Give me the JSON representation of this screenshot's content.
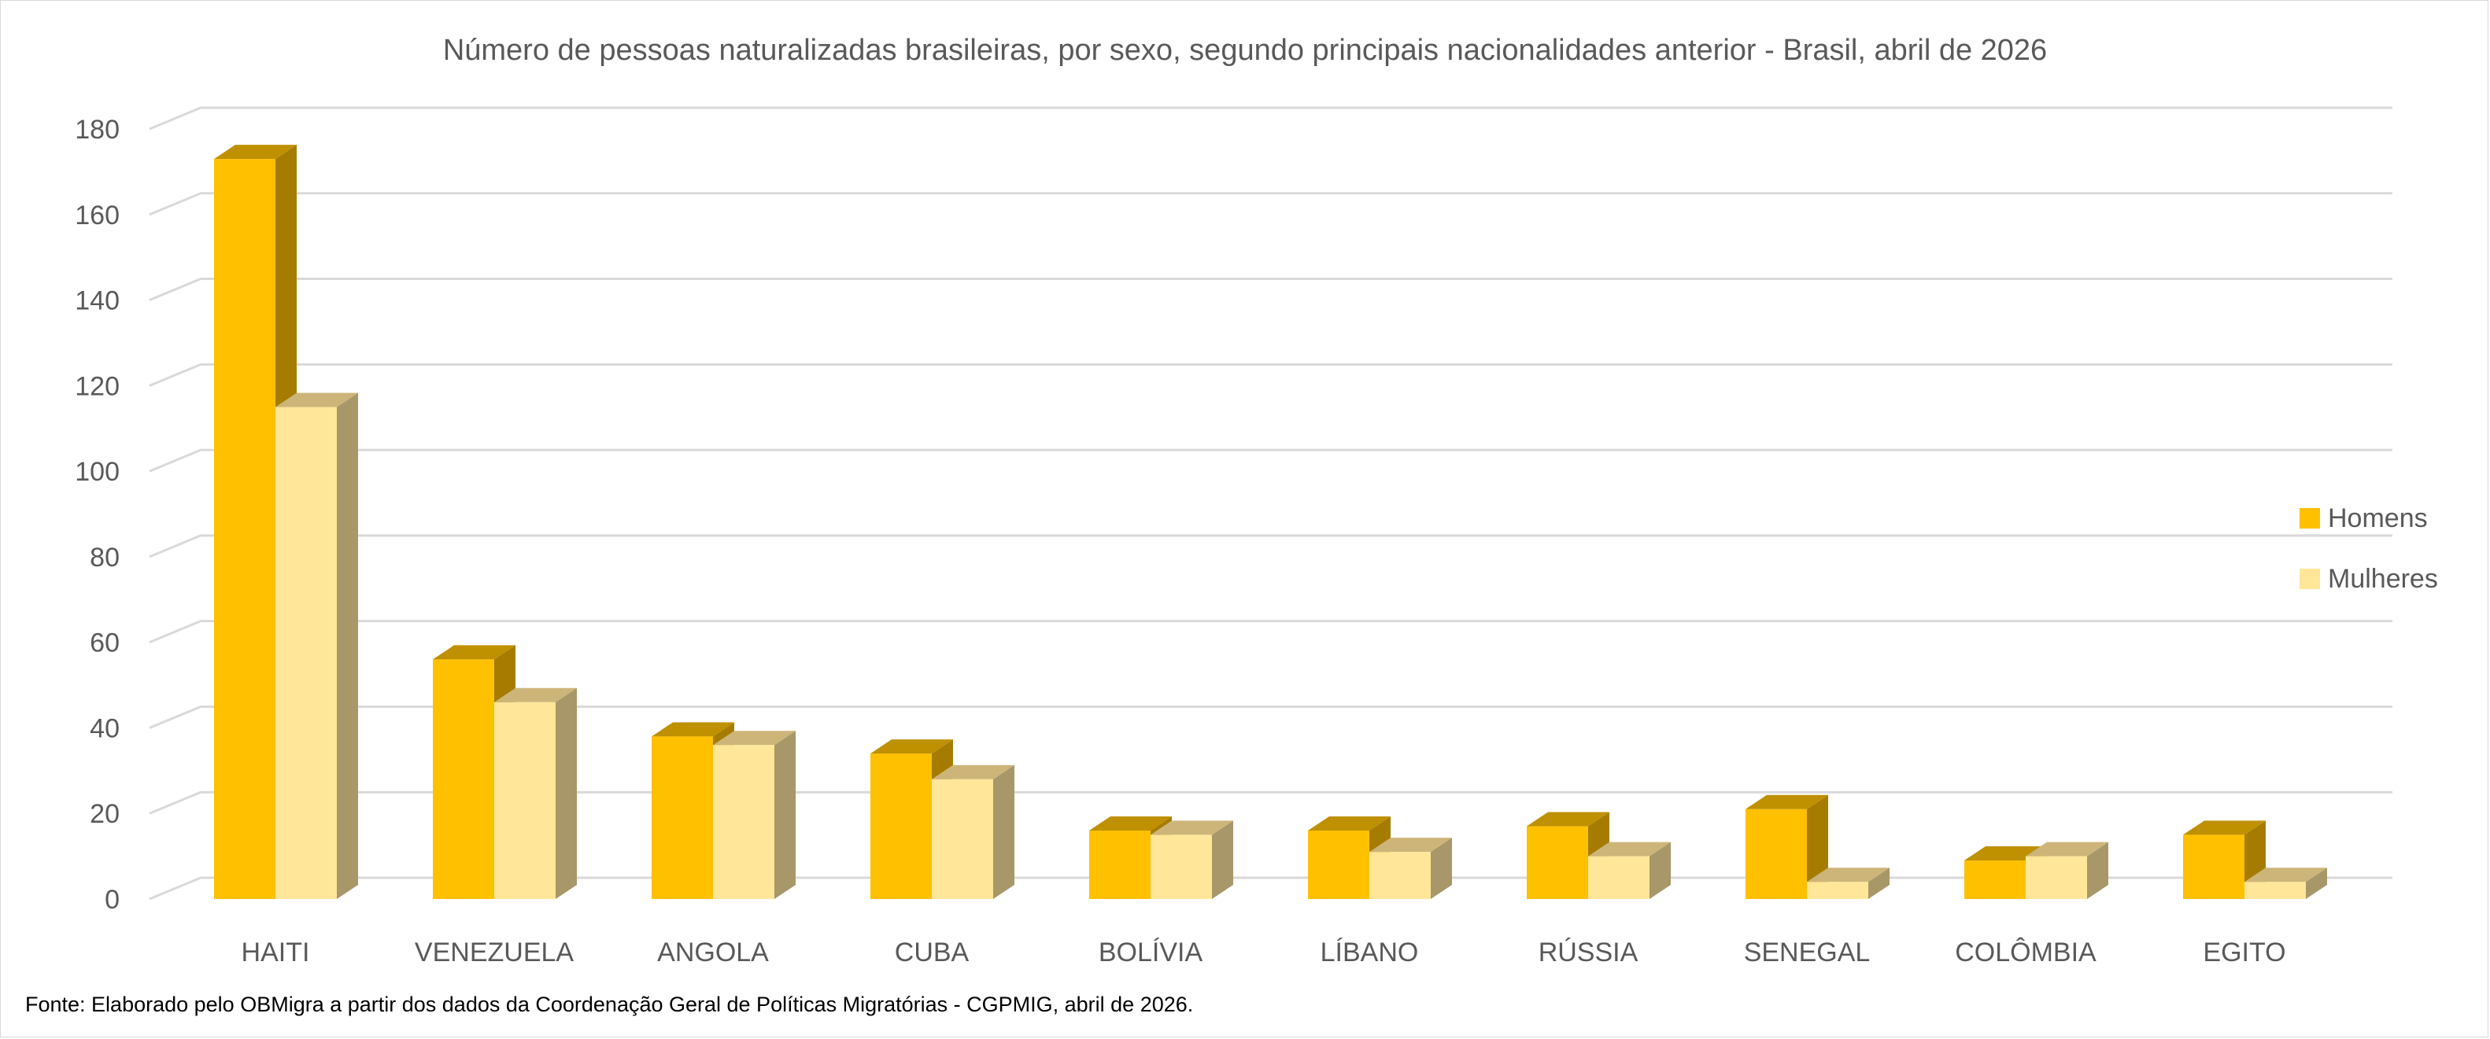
{
  "chart_data": {
    "type": "bar",
    "style": "3d-clustered-column",
    "title": "Número de pessoas naturalizadas brasileiras, por sexo, segundo principais nacionalidades anterior - Brasil, abril de 2026",
    "source": "Fonte: Elaborado pelo OBMigra a partir dos dados da Coordenação Geral de Políticas Migratórias - CGPMIG, abril de 2026.",
    "categories": [
      "HAITI",
      "VENEZUELA",
      "ANGOLA",
      "CUBA",
      "BOLÍVIA",
      "LÍBANO",
      "RÚSSIA",
      "SENEGAL",
      "COLÔMBIA",
      "EGITO"
    ],
    "series": [
      {
        "name": "Homens",
        "color": "#FFC000",
        "top_color": "#BF9000",
        "side_color": "#A67C00",
        "values": [
          173,
          56,
          38,
          34,
          16,
          16,
          17,
          21,
          9,
          15
        ]
      },
      {
        "name": "Mulheres",
        "color": "#FFE699",
        "top_color": "#CDB57A",
        "side_color": "#A89768",
        "values": [
          115,
          46,
          36,
          28,
          15,
          11,
          10,
          4,
          10,
          4
        ]
      }
    ],
    "y_ticks": [
      "0",
      "20",
      "40",
      "60",
      "80",
      "100",
      "120",
      "140",
      "160",
      "180"
    ],
    "ylim": [
      0,
      180
    ],
    "xlabel": "",
    "ylabel": "",
    "grid": true,
    "legend_position": "right"
  }
}
